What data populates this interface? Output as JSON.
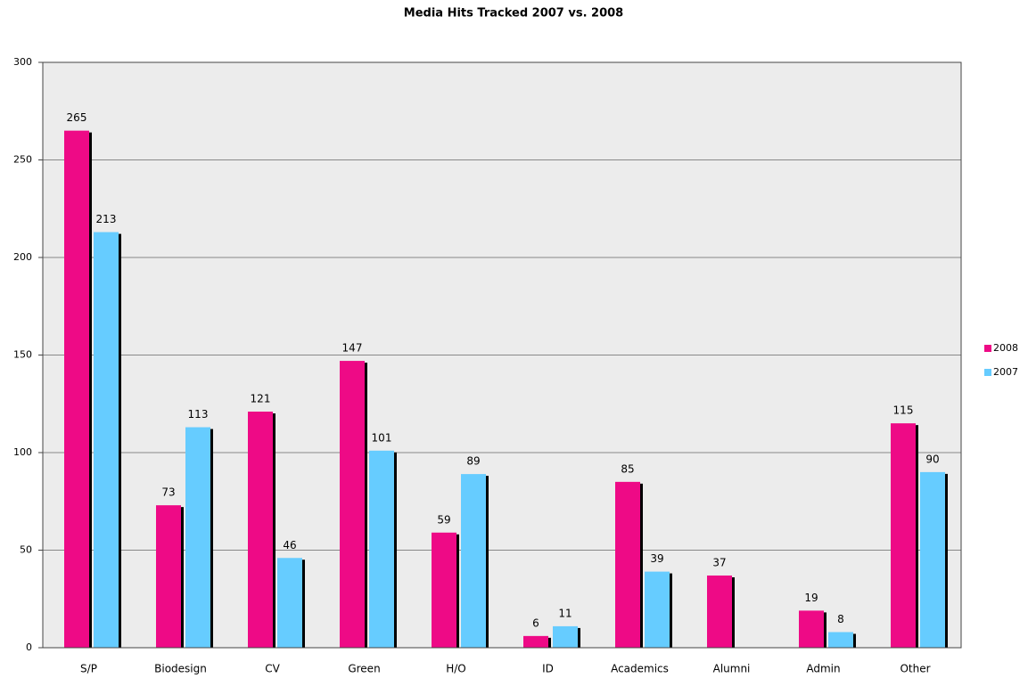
{
  "chart_data": {
    "type": "bar",
    "title": "Media Hits Tracked 2007 vs. 2008",
    "categories": [
      "S/P",
      "Biodesign",
      "CV",
      "Green",
      "H/O",
      "ID",
      "Academics",
      "Alumni",
      "Admin",
      "Other"
    ],
    "series": [
      {
        "name": "2008",
        "color": "#ee0a86",
        "values": [
          265,
          73,
          121,
          147,
          59,
          6,
          85,
          37,
          19,
          115
        ]
      },
      {
        "name": "2007",
        "color": "#66ccff",
        "values": [
          213,
          113,
          46,
          101,
          89,
          11,
          39,
          null,
          8,
          90
        ]
      }
    ],
    "ylim": [
      0,
      300
    ],
    "yticks": [
      0,
      50,
      100,
      150,
      200,
      250,
      300
    ],
    "grid": true,
    "legend": "right"
  }
}
